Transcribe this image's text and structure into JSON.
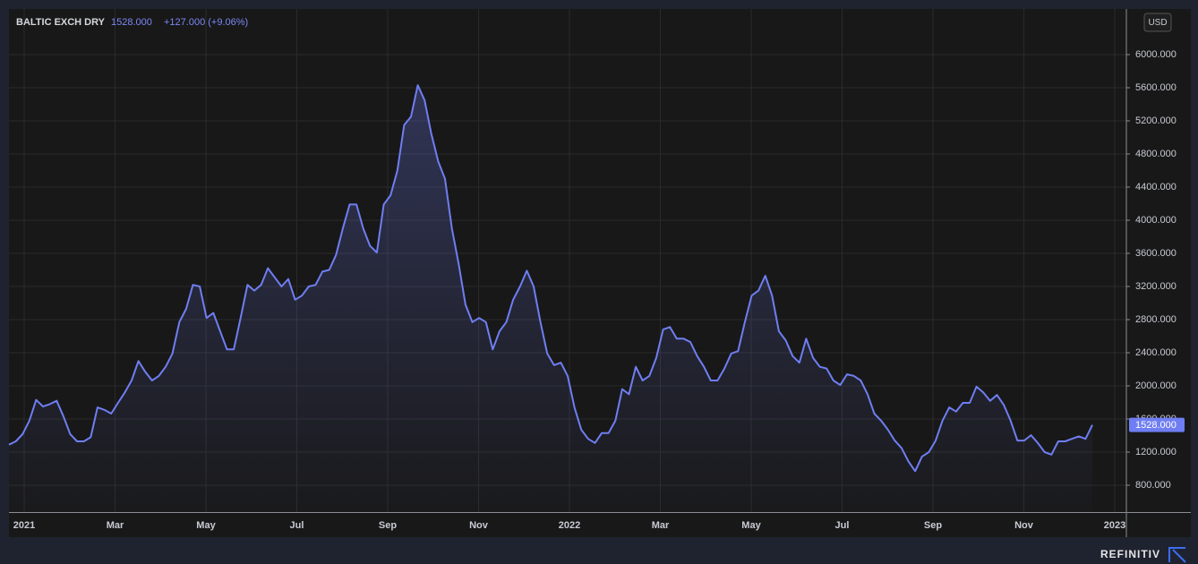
{
  "chart_data": {
    "type": "area",
    "title": "BALTIC EXCH DRY",
    "price": "1528.000",
    "change": "+127.000 (+9.06%)",
    "currency": "USD",
    "brand": "REFINITIV",
    "color": "#6f7ef2",
    "grid": true,
    "xticks": [
      "2021",
      "Mar",
      "May",
      "Jul",
      "Sep",
      "Nov",
      "2022",
      "Mar",
      "May",
      "Jul",
      "Sep",
      "Nov",
      "2023"
    ],
    "ylim": [
      476,
      6551
    ],
    "yticks": [
      {
        "value": 800,
        "label": "800.000"
      },
      {
        "value": 1200,
        "label": "1200.000"
      },
      {
        "value": 1600,
        "label": "1600.000"
      },
      {
        "value": 2000,
        "label": "2000.000"
      },
      {
        "value": 2400,
        "label": "2400.000"
      },
      {
        "value": 2800,
        "label": "2800.000"
      },
      {
        "value": 3200,
        "label": "3200.000"
      },
      {
        "value": 3600,
        "label": "3600.000"
      },
      {
        "value": 4000,
        "label": "4000.000"
      },
      {
        "value": 4400,
        "label": "4400.000"
      },
      {
        "value": 4800,
        "label": "4800.000"
      },
      {
        "value": 5200,
        "label": "5200.000"
      },
      {
        "value": 5600,
        "label": "5600.000"
      },
      {
        "value": 6000,
        "label": "6000.000"
      }
    ],
    "values": [
      1290,
      1330,
      1416,
      1580,
      1830,
      1750,
      1780,
      1820,
      1630,
      1415,
      1330,
      1330,
      1380,
      1740,
      1710,
      1665,
      1795,
      1920,
      2065,
      2300,
      2170,
      2065,
      2120,
      2230,
      2390,
      2770,
      2930,
      3220,
      3200,
      2820,
      2880,
      2660,
      2440,
      2440,
      2820,
      3220,
      3150,
      3220,
      3420,
      3310,
      3200,
      3290,
      3040,
      3090,
      3200,
      3220,
      3380,
      3400,
      3580,
      3900,
      4190,
      4190,
      3900,
      3690,
      3610,
      4190,
      4300,
      4600,
      5150,
      5250,
      5630,
      5450,
      5040,
      4710,
      4500,
      3900,
      3470,
      2980,
      2770,
      2820,
      2770,
      2440,
      2660,
      2770,
      3040,
      3200,
      3390,
      3200,
      2770,
      2390,
      2250,
      2280,
      2120,
      1740,
      1470,
      1360,
      1310,
      1430,
      1430,
      1580,
      1960,
      1900,
      2230,
      2065,
      2120,
      2340,
      2680,
      2710,
      2570,
      2570,
      2530,
      2360,
      2230,
      2065,
      2065,
      2210,
      2390,
      2420,
      2770,
      3090,
      3150,
      3330,
      3090,
      2660,
      2550,
      2360,
      2280,
      2570,
      2340,
      2230,
      2210,
      2065,
      2010,
      2140,
      2120,
      2065,
      1900,
      1665,
      1580,
      1470,
      1340,
      1250,
      1090,
      970,
      1145,
      1200,
      1340,
      1580,
      1740,
      1690,
      1795,
      1795,
      1990,
      1920,
      1820,
      1890,
      1770,
      1580,
      1340,
      1340,
      1405,
      1310,
      1200,
      1170,
      1330,
      1330,
      1360,
      1390,
      1360,
      1528
    ]
  }
}
